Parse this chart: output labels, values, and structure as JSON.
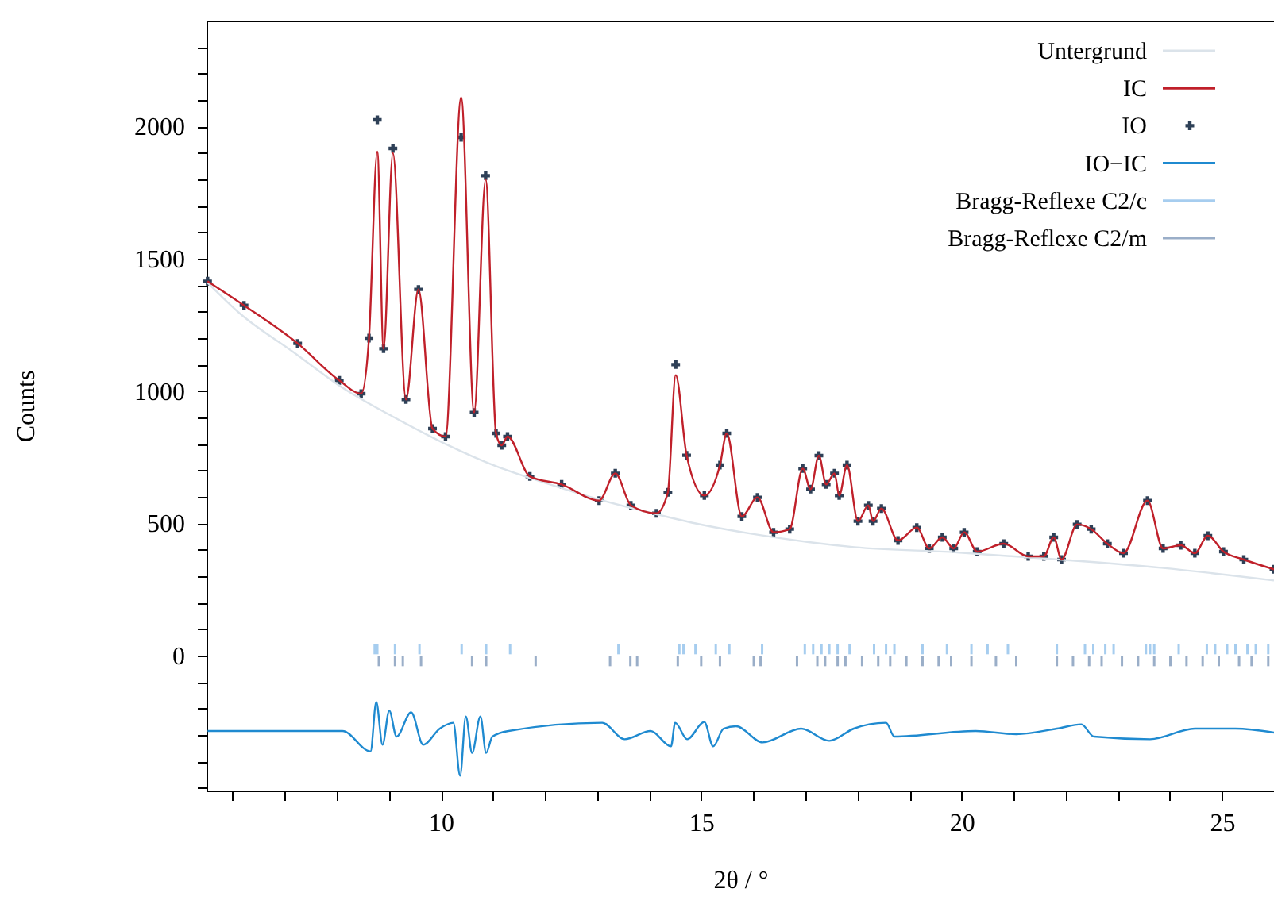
{
  "chart_data": {
    "type": "line",
    "xlabel": "2θ / °",
    "ylabel": "Counts",
    "xlim": [
      5.5,
      26.0
    ],
    "ylim": [
      -510,
      2400
    ],
    "xticks": [
      {
        "value": 6,
        "label": null
      },
      {
        "value": 7,
        "label": null
      },
      {
        "value": 8,
        "label": null
      },
      {
        "value": 9,
        "label": null
      },
      10,
      {
        "value": 11,
        "label": null
      },
      {
        "value": 12,
        "label": null
      },
      {
        "value": 13,
        "label": null
      },
      {
        "value": 14,
        "label": null
      },
      15,
      {
        "value": 16,
        "label": null
      },
      {
        "value": 17,
        "label": null
      },
      {
        "value": 18,
        "label": null
      },
      {
        "value": 19,
        "label": null
      },
      20,
      {
        "value": 21,
        "label": null
      },
      {
        "value": 22,
        "label": null
      },
      {
        "value": 23,
        "label": null
      },
      {
        "value": 24,
        "label": null
      },
      25
    ],
    "yticks": [
      {
        "value": -500,
        "label": null
      },
      {
        "value": -400,
        "label": null
      },
      {
        "value": -300,
        "label": null
      },
      {
        "value": -200,
        "label": null
      },
      {
        "value": -100,
        "label": null
      },
      0,
      {
        "value": 100,
        "label": null
      },
      {
        "value": 200,
        "label": null
      },
      {
        "value": 300,
        "label": null
      },
      {
        "value": 400,
        "label": null
      },
      500,
      {
        "value": 600,
        "label": null
      },
      {
        "value": 700,
        "label": null
      },
      {
        "value": 800,
        "label": null
      },
      {
        "value": 900,
        "label": null
      },
      1000,
      {
        "value": 1100,
        "label": null
      },
      {
        "value": 1200,
        "label": null
      },
      {
        "value": 1300,
        "label": null
      },
      {
        "value": 1400,
        "label": null
      },
      1500,
      {
        "value": 1600,
        "label": null
      },
      {
        "value": 1700,
        "label": null
      },
      {
        "value": 1800,
        "label": null
      },
      {
        "value": 1900,
        "label": null
      },
      2000,
      {
        "value": 2100,
        "label": null
      },
      {
        "value": 2200,
        "label": null
      },
      {
        "value": 2300,
        "label": null
      }
    ],
    "grid": false,
    "legend": "top right",
    "series": [
      {
        "name": "Untergrund",
        "color": "#dbe3ea",
        "x": [
          5.52,
          6.16,
          7.15,
          8.13,
          9.11,
          10.09,
          11.07,
          12.05,
          13.04,
          14.02,
          15.0,
          15.98,
          17.94,
          19.91,
          21.87,
          23.83,
          26.0
        ],
        "values": [
          1410,
          1290,
          1150,
          1010,
          900,
          800,
          715,
          650,
          590,
          540,
          495,
          460,
          410,
          390,
          363,
          332,
          284
        ]
      },
      {
        "name": "IC",
        "color": "#c0202a",
        "x": [
          5.52,
          6.22,
          7.25,
          8.05,
          8.47,
          8.62,
          8.78,
          8.9,
          9.08,
          9.33,
          9.57,
          9.84,
          10.09,
          10.39,
          10.64,
          10.86,
          11.06,
          11.17,
          11.28,
          11.71,
          12.32,
          13.04,
          13.35,
          13.65,
          14.14,
          14.36,
          14.51,
          14.72,
          15.06,
          15.36,
          15.49,
          15.78,
          16.08,
          16.39,
          16.7,
          16.95,
          17.1,
          17.26,
          17.4,
          17.56,
          17.65,
          17.8,
          18.01,
          18.21,
          18.3,
          18.46,
          18.78,
          19.14,
          19.38,
          19.63,
          19.85,
          20.05,
          20.3,
          20.81,
          21.28,
          21.58,
          21.77,
          21.92,
          22.22,
          22.49,
          22.8,
          23.11,
          23.57,
          23.87,
          24.21,
          24.48,
          24.73,
          25.03,
          25.42,
          26.0
        ],
        "values": [
          1415,
          1324,
          1180,
          1040,
          990,
          1200,
          1905,
          1160,
          1900,
          968,
          1384,
          858,
          828,
          2110,
          919,
          1800,
          840,
          795,
          828,
          677,
          647,
          586,
          689,
          568,
          538,
          617,
          1060,
          757,
          605,
          720,
          840,
          526,
          598,
          466,
          478,
          707,
          629,
          756,
          647,
          689,
          605,
          720,
          508,
          568,
          508,
          556,
          435,
          484,
          405,
          447,
          405,
          466,
          393,
          423,
          375,
          375,
          447,
          363,
          496,
          478,
          423,
          387,
          586,
          405,
          417,
          387,
          453,
          393,
          363,
          326
        ]
      },
      {
        "name": "IO",
        "type": "scatter",
        "marker": "cross",
        "color": "#2e4057",
        "x": [
          5.52,
          6.22,
          7.25,
          8.05,
          8.47,
          8.62,
          8.78,
          8.9,
          9.08,
          9.33,
          9.57,
          9.84,
          10.09,
          10.39,
          10.64,
          10.86,
          11.06,
          11.17,
          11.28,
          11.71,
          12.32,
          13.04,
          13.35,
          13.65,
          14.14,
          14.36,
          14.51,
          14.72,
          15.06,
          15.36,
          15.49,
          15.78,
          16.08,
          16.39,
          16.7,
          16.95,
          17.1,
          17.26,
          17.4,
          17.56,
          17.65,
          17.8,
          18.01,
          18.21,
          18.3,
          18.46,
          18.78,
          19.14,
          19.38,
          19.63,
          19.85,
          20.05,
          20.3,
          20.81,
          21.28,
          21.58,
          21.77,
          21.92,
          22.22,
          22.49,
          22.8,
          23.11,
          23.57,
          23.87,
          24.21,
          24.48,
          24.73,
          25.03,
          25.42,
          26.0
        ],
        "values": [
          1415,
          1324,
          1180,
          1040,
          990,
          1200,
          2025,
          1160,
          1917,
          968,
          1384,
          858,
          828,
          1959,
          919,
          1814,
          840,
          795,
          828,
          677,
          647,
          586,
          689,
          568,
          538,
          617,
          1100,
          757,
          605,
          720,
          840,
          526,
          598,
          466,
          478,
          707,
          629,
          756,
          647,
          689,
          605,
          720,
          508,
          568,
          508,
          556,
          435,
          484,
          405,
          447,
          405,
          466,
          393,
          423,
          375,
          375,
          447,
          363,
          496,
          478,
          423,
          387,
          586,
          405,
          417,
          387,
          453,
          393,
          363,
          326
        ]
      },
      {
        "name": "IO−IC",
        "color": "#1f8ad0",
        "x": [
          5.52,
          8.11,
          8.65,
          8.76,
          8.88,
          9.01,
          9.15,
          9.43,
          9.66,
          9.98,
          10.24,
          10.37,
          10.48,
          10.6,
          10.76,
          10.87,
          10.99,
          11.3,
          13.1,
          13.53,
          14.03,
          14.42,
          14.5,
          14.73,
          15.06,
          15.23,
          15.43,
          15.67,
          16.18,
          16.92,
          17.46,
          17.93,
          18.55,
          18.71,
          20.27,
          21.05,
          21.83,
          22.3,
          22.54,
          23.62,
          24.48,
          25.26,
          26.0
        ],
        "values": [
          -285,
          -285,
          -362,
          -175,
          -337,
          -208,
          -306,
          -214,
          -337,
          -276,
          -254,
          -454,
          -230,
          -368,
          -230,
          -368,
          -306,
          -285,
          -254,
          -316,
          -285,
          -343,
          -254,
          -316,
          -251,
          -343,
          -276,
          -267,
          -328,
          -276,
          -322,
          -276,
          -254,
          -306,
          -285,
          -297,
          -276,
          -260,
          -306,
          -316,
          -276,
          -276,
          -291
        ]
      },
      {
        "name": "Bragg-Reflexe C2/c",
        "type": "bar",
        "base": [
          5,
          5,
          5,
          5,
          5,
          5,
          5,
          5,
          5,
          5,
          5,
          5,
          5,
          5,
          5,
          5,
          5,
          5,
          5,
          5,
          5,
          5,
          5,
          5,
          5,
          5,
          5,
          5,
          5,
          5,
          5,
          5,
          5,
          5,
          5,
          5,
          5,
          5,
          5,
          5,
          5,
          5,
          5,
          5
        ],
        "color": "#a6cdef",
        "x": [
          8.73,
          8.78,
          9.12,
          9.59,
          10.4,
          10.87,
          11.33,
          13.41,
          14.58,
          14.66,
          14.89,
          15.28,
          15.54,
          16.17,
          16.99,
          17.15,
          17.31,
          17.46,
          17.62,
          17.85,
          18.32,
          18.55,
          18.71,
          19.25,
          19.72,
          20.19,
          20.5,
          20.89,
          21.83,
          22.37,
          22.53,
          22.76,
          22.92,
          23.54,
          23.62,
          23.7,
          24.17,
          24.71,
          24.87,
          25.1,
          25.26,
          25.49,
          25.65,
          25.89
        ],
        "values": [
          37,
          37,
          37,
          37,
          37,
          37,
          37,
          37,
          37,
          37,
          37,
          37,
          37,
          37,
          37,
          37,
          37,
          37,
          37,
          37,
          37,
          37,
          37,
          37,
          37,
          37,
          37,
          37,
          37,
          37,
          37,
          37,
          37,
          37,
          37,
          37,
          37,
          37,
          37,
          37,
          37,
          37,
          37,
          37
        ]
      },
      {
        "name": "Bragg-Reflexe C2/m",
        "type": "bar",
        "base": [
          -40,
          -40,
          -40,
          -40,
          -40,
          -40,
          -40,
          -40,
          -40,
          -40,
          -40,
          -40,
          -40,
          -40,
          -40,
          -40,
          -40,
          -40,
          -40,
          -40,
          -40,
          -40,
          -40,
          -40,
          -40,
          -40,
          -40,
          -40,
          -40,
          -40,
          -40,
          -40,
          -40,
          -40,
          -40,
          -40,
          -40,
          -40,
          -40,
          -40,
          -40,
          -40,
          -40,
          -40
        ],
        "color": "#9aaec8",
        "x": [
          8.81,
          9.12,
          9.27,
          9.62,
          10.6,
          10.87,
          11.82,
          13.25,
          13.64,
          13.77,
          14.55,
          15.0,
          15.36,
          16.01,
          16.14,
          16.84,
          17.23,
          17.38,
          17.62,
          17.77,
          18.09,
          18.4,
          18.63,
          18.94,
          19.25,
          19.56,
          19.8,
          20.19,
          20.66,
          21.05,
          21.83,
          22.14,
          22.45,
          22.69,
          23.08,
          23.39,
          23.7,
          24.01,
          24.32,
          24.63,
          24.94,
          25.33,
          25.57,
          25.89
        ],
        "values": [
          37,
          37,
          37,
          37,
          37,
          37,
          37,
          37,
          37,
          37,
          37,
          37,
          37,
          37,
          37,
          37,
          37,
          37,
          37,
          37,
          37,
          37,
          37,
          37,
          37,
          37,
          37,
          37,
          37,
          37,
          37,
          37,
          37,
          37,
          37,
          37,
          37,
          37,
          37,
          37,
          37,
          37,
          37,
          37
        ]
      }
    ]
  }
}
